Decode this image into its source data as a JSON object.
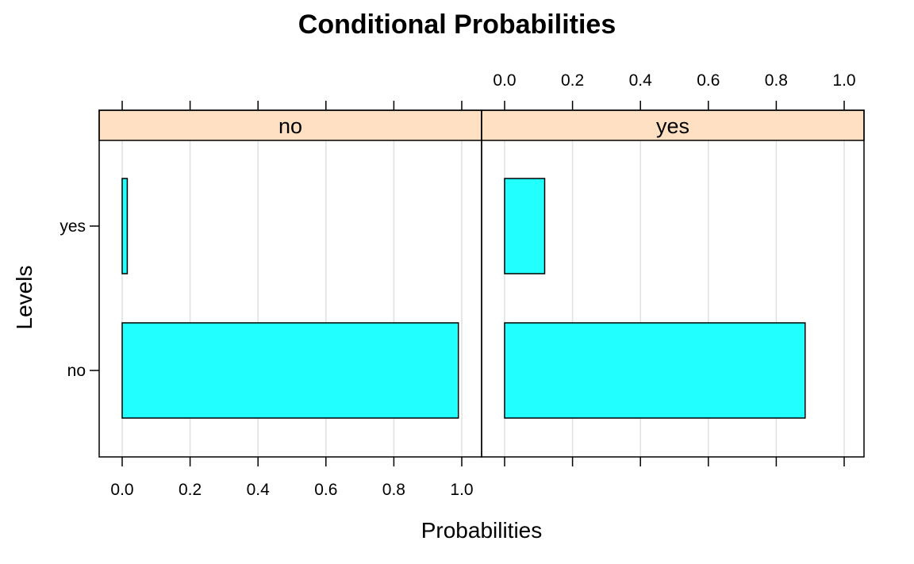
{
  "chart_data": {
    "type": "bar",
    "orientation": "horizontal",
    "title": "Conditional Probabilities",
    "xlabel": "Probabilities",
    "ylabel": "Levels",
    "xlim": [
      0,
      1
    ],
    "x_ticks": [
      "0.0",
      "0.2",
      "0.4",
      "0.6",
      "0.8",
      "1.0"
    ],
    "categories": [
      "no",
      "yes"
    ],
    "panels": [
      {
        "strip": "no",
        "values": [
          0.99,
          0.015
        ]
      },
      {
        "strip": "yes",
        "values": [
          0.885,
          0.118
        ]
      }
    ],
    "grid": true,
    "colors": {
      "bar_fill": "#22ffff",
      "strip_fill": "#ffe0c2",
      "grid": "#e0e0e0"
    }
  }
}
